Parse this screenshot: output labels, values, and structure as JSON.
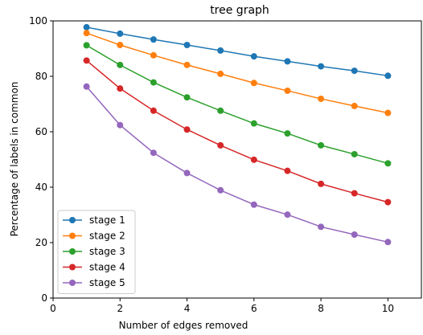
{
  "chart_data": {
    "type": "line",
    "title": "tree graph",
    "xlabel": "Number of edges removed",
    "ylabel": "Percentage of labels in common",
    "xlim": [
      0,
      11
    ],
    "ylim": [
      0,
      100
    ],
    "xticks": [
      0,
      2,
      4,
      6,
      8,
      10
    ],
    "yticks": [
      0,
      20,
      40,
      60,
      80,
      100
    ],
    "grid": false,
    "legend_position": "lower-left",
    "x": [
      1,
      2,
      3,
      4,
      5,
      6,
      7,
      8,
      9,
      10
    ],
    "series": [
      {
        "name": "stage 1",
        "color": "#1f77b4",
        "values": [
          97.7,
          95.4,
          93.3,
          91.3,
          89.3,
          87.2,
          85.4,
          83.6,
          82.0,
          80.2
        ]
      },
      {
        "name": "stage 2",
        "color": "#ff7f0e",
        "values": [
          95.6,
          91.3,
          87.6,
          84.1,
          80.9,
          77.6,
          74.8,
          71.9,
          69.3,
          66.8
        ]
      },
      {
        "name": "stage 3",
        "color": "#2ca02c",
        "values": [
          91.2,
          84.1,
          77.8,
          72.4,
          67.6,
          63.0,
          59.4,
          55.1,
          51.9,
          48.6
        ]
      },
      {
        "name": "stage 4",
        "color": "#d62728",
        "values": [
          85.7,
          75.6,
          67.6,
          60.8,
          55.1,
          49.9,
          45.9,
          41.2,
          37.8,
          34.6
        ]
      },
      {
        "name": "stage 5",
        "color": "#9467bd",
        "values": [
          76.3,
          62.4,
          52.4,
          45.1,
          38.9,
          33.7,
          30.1,
          25.7,
          22.9,
          20.2
        ]
      }
    ]
  }
}
